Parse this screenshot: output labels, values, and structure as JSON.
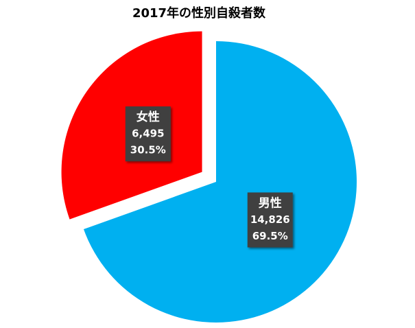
{
  "chart_data": {
    "type": "pie",
    "title": "2017年の性別自殺者数",
    "categories": [
      "男性",
      "女性"
    ],
    "values": [
      14826,
      6495
    ],
    "value_labels": [
      "14,826",
      "6,495"
    ],
    "percent_labels": [
      "69.5%",
      "30.5%"
    ],
    "colors": [
      "#00b0f0",
      "#ff0000"
    ],
    "exploded": [
      false,
      true
    ]
  }
}
